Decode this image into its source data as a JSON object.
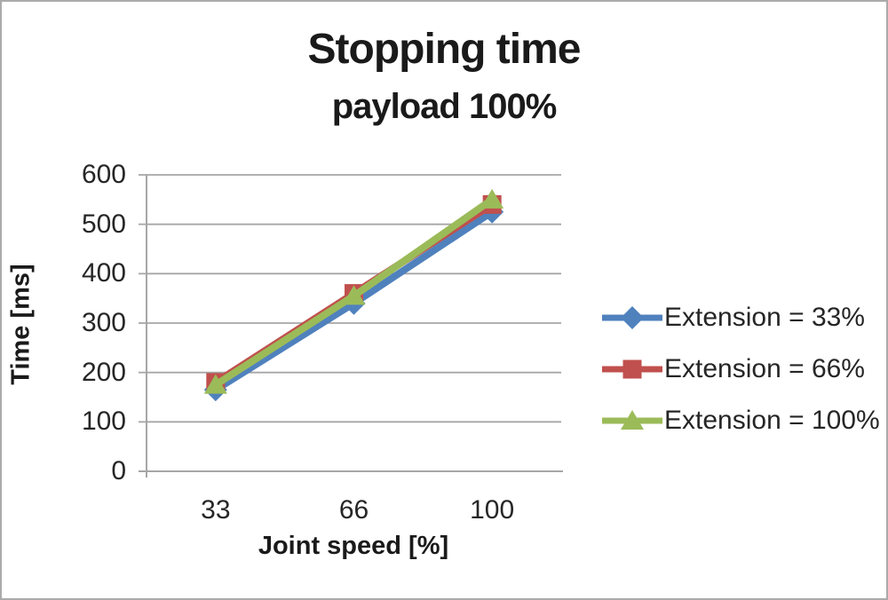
{
  "chart_data": {
    "type": "line",
    "title": "Stopping time",
    "subtitle": "payload 100%",
    "xlabel": "Joint speed [%]",
    "ylabel": "Time [ms]",
    "categories": [
      "33",
      "66",
      "100"
    ],
    "series": [
      {
        "name": "Extension = 33%",
        "color": "#4F81BD",
        "marker": "diamond",
        "values": [
          165,
          340,
          525
        ]
      },
      {
        "name": "Extension = 66%",
        "color": "#C0504D",
        "marker": "square",
        "values": [
          180,
          360,
          540
        ]
      },
      {
        "name": "Extension = 100%",
        "color": "#9BBB59",
        "marker": "triangle",
        "values": [
          175,
          355,
          550
        ]
      }
    ],
    "ylim": [
      0,
      600
    ],
    "ytick_step": 100,
    "yticks": [
      0,
      100,
      200,
      300,
      400,
      500,
      600
    ],
    "grid": "horizontal",
    "legend_position": "right",
    "axis_color": "#a6a6a6",
    "text_color": "#262626",
    "border_color": "#ababab"
  }
}
